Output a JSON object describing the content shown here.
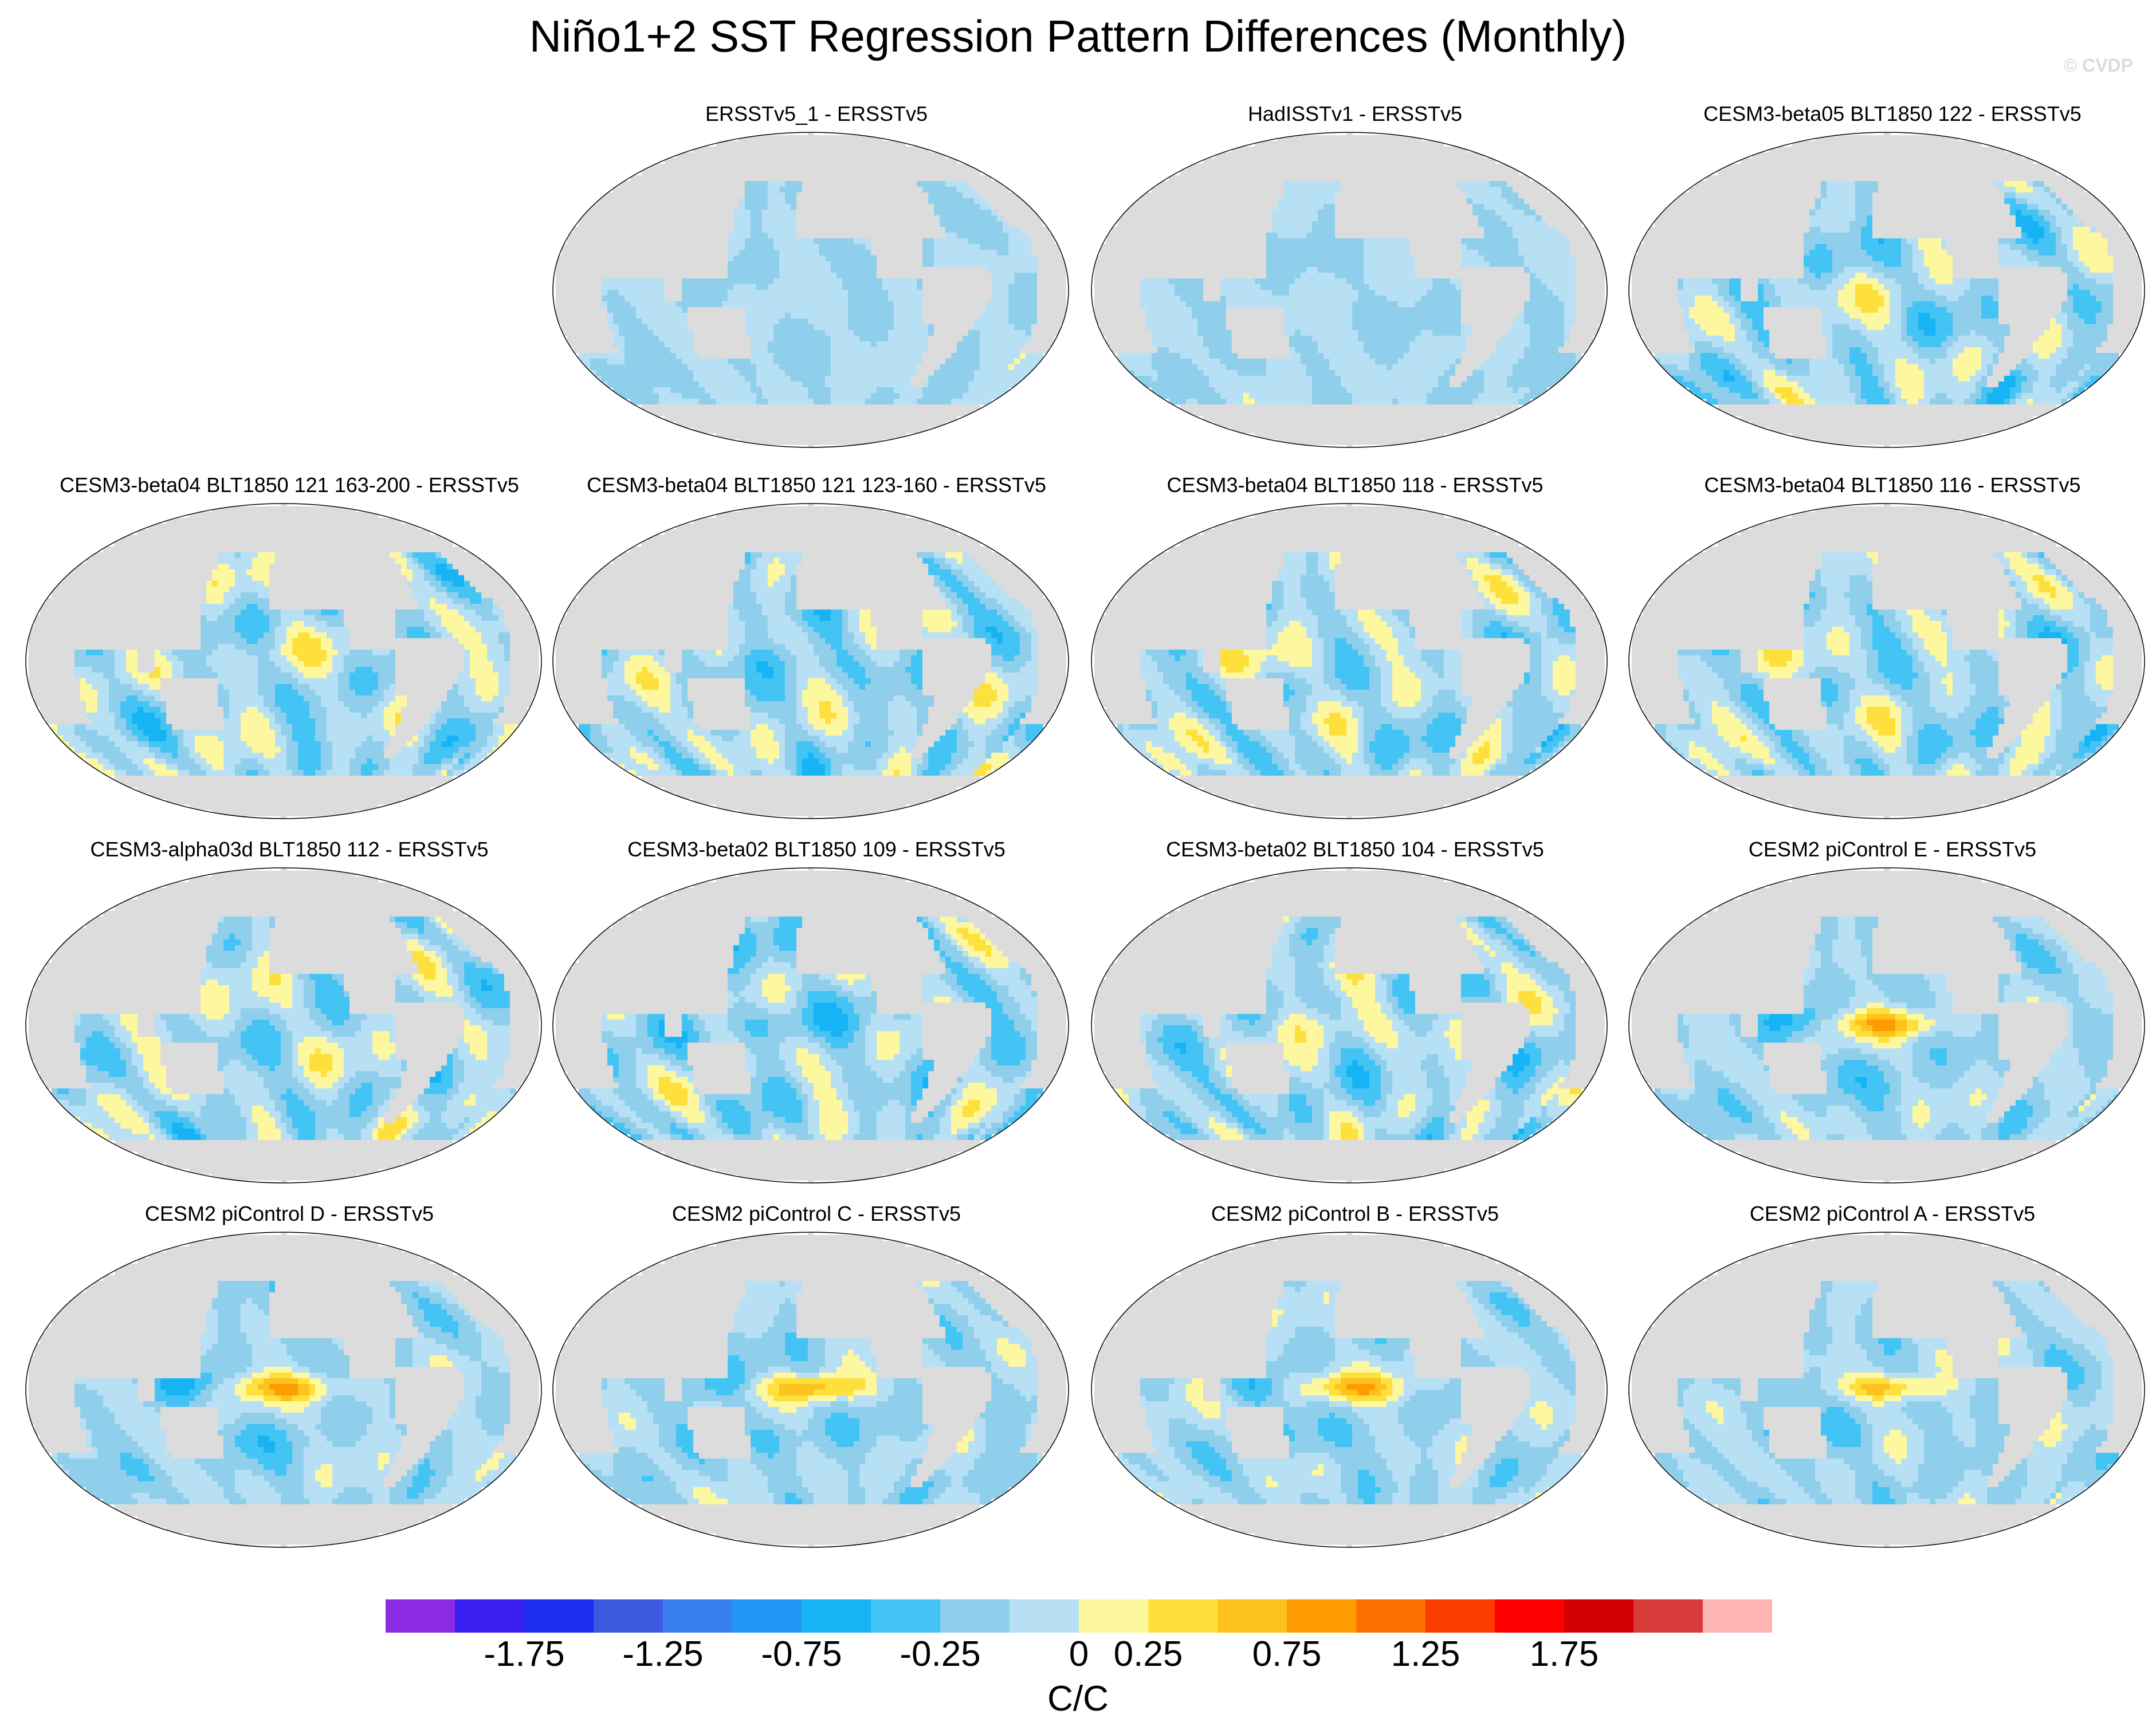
{
  "title": "Niño1+2 SST Regression Pattern Differences (Monthly)",
  "watermark": "© CVDP",
  "chart_data": {
    "type": "heatmap",
    "projection": "Robinson (Pacific-centered global ocean maps)",
    "units": "C/C",
    "colorbar": {
      "orientation": "horizontal",
      "tick_labels": [
        "-1.75",
        "-1.25",
        "-0.75",
        "-0.25",
        "0",
        "0.25",
        "0.75",
        "1.25",
        "1.75"
      ],
      "levels": [
        -2.0,
        -1.75,
        -1.5,
        -1.25,
        -1.0,
        -0.75,
        -0.5,
        -0.25,
        0,
        0.25,
        0.5,
        0.75,
        1.0,
        1.25,
        1.5,
        1.75,
        2.0
      ],
      "colors": [
        "#8b2be2",
        "#3a1ef2",
        "#1e2cf0",
        "#3c5ae0",
        "#3a7ff0",
        "#2396f5",
        "#17b4f5",
        "#44c4f4",
        "#90cfec",
        "#b8e0f4",
        "#fdf7a0",
        "#fde03c",
        "#fdc21e",
        "#fd9b00",
        "#fd7000",
        "#fd3c00",
        "#fd0000",
        "#d20000",
        "#d83a3a",
        "#fcb4b4"
      ]
    },
    "panels": [
      {
        "title": "",
        "empty": true
      },
      {
        "title": "ERSSTv5_1 - ERSSTv5",
        "pattern": "weak"
      },
      {
        "title": "HadISSTv1 - ERSSTv5",
        "pattern": "weak"
      },
      {
        "title": "CESM3-beta05 BLT1850 122 - ERSSTv5",
        "pattern": "beta"
      },
      {
        "title": "CESM3-beta04 BLT1850 121 163-200 - ERSSTv5",
        "pattern": "beta"
      },
      {
        "title": "CESM3-beta04 BLT1850 121 123-160 - ERSSTv5",
        "pattern": "beta"
      },
      {
        "title": "CESM3-beta04 BLT1850 118 - ERSSTv5",
        "pattern": "beta"
      },
      {
        "title": "CESM3-beta04 BLT1850 116 - ERSSTv5",
        "pattern": "beta"
      },
      {
        "title": "CESM3-alpha03d BLT1850 112 - ERSSTv5",
        "pattern": "beta"
      },
      {
        "title": "CESM3-beta02 BLT1850 109 - ERSSTv5",
        "pattern": "beta"
      },
      {
        "title": "CESM3-beta02 BLT1850 104 - ERSSTv5",
        "pattern": "beta"
      },
      {
        "title": "CESM2 piControl E - ERSSTv5",
        "pattern": "enso"
      },
      {
        "title": "CESM2 piControl D - ERSSTv5",
        "pattern": "enso"
      },
      {
        "title": "CESM2 piControl C - ERSSTv5",
        "pattern": "enso"
      },
      {
        "title": "CESM2 piControl B - ERSSTv5",
        "pattern": "enso"
      },
      {
        "title": "CESM2 piControl A - ERSSTv5",
        "pattern": "enso"
      }
    ]
  }
}
